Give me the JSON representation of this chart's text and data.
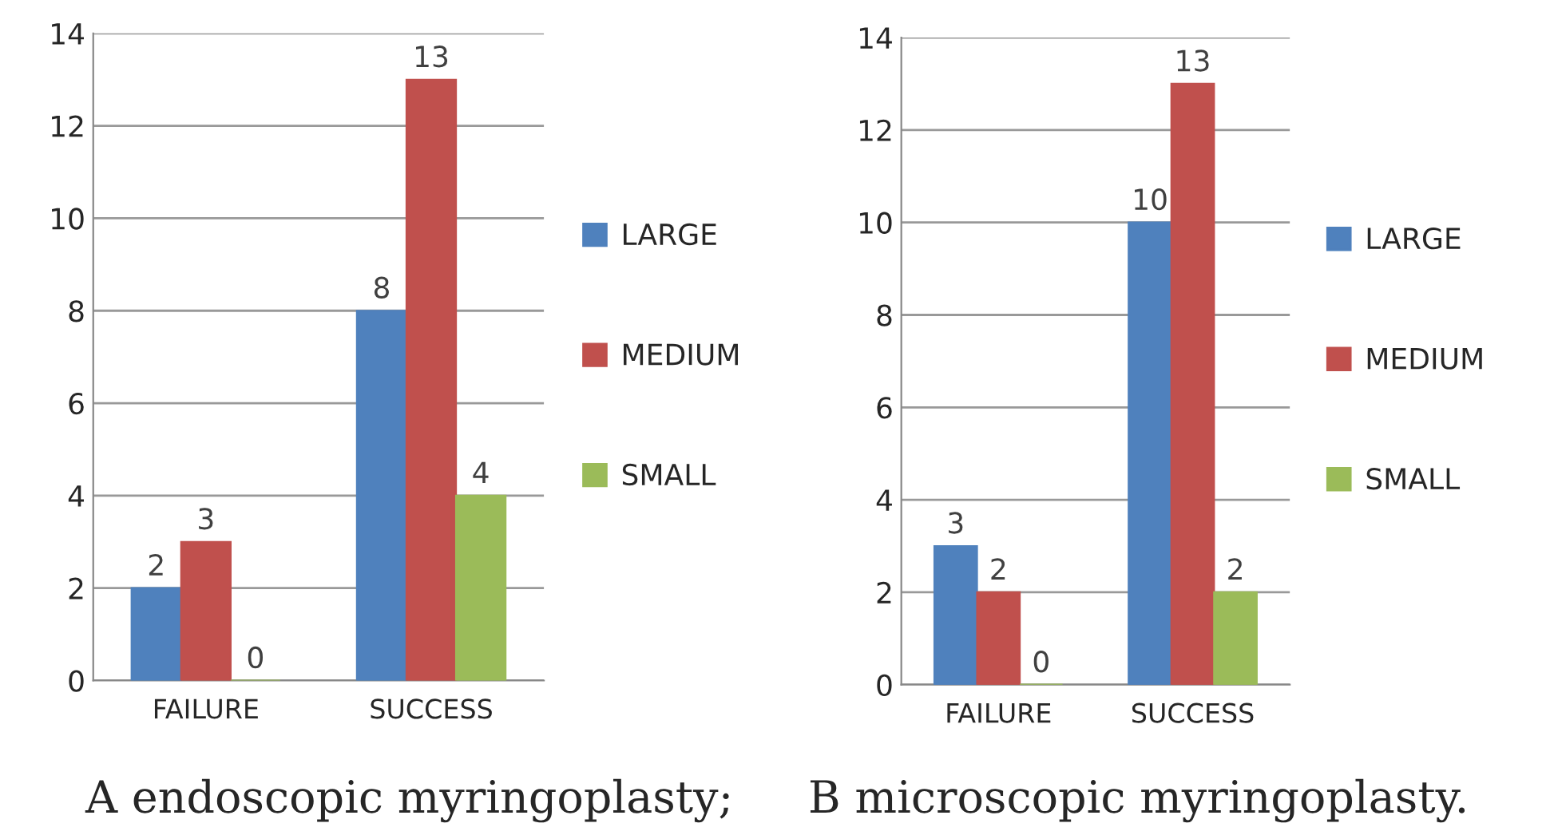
{
  "chart_data": [
    {
      "type": "bar",
      "categories": [
        "FAILURE",
        "SUCCESS"
      ],
      "series": [
        {
          "name": "LARGE",
          "color": "#4f81bd",
          "values": [
            2,
            8
          ]
        },
        {
          "name": "MEDIUM",
          "color": "#c0504d",
          "values": [
            3,
            13
          ]
        },
        {
          "name": "SMALL",
          "color": "#9bbb59",
          "values": [
            0,
            4
          ]
        }
      ],
      "ylim": [
        0,
        14
      ],
      "yticks": [
        0,
        2,
        4,
        6,
        8,
        10,
        12,
        14
      ],
      "grid": "y",
      "legend": "right",
      "data_labels": true,
      "annotations": [
        "A endoscopic myringoplasty;"
      ]
    },
    {
      "type": "bar",
      "categories": [
        "FAILURE",
        "SUCCESS"
      ],
      "series": [
        {
          "name": "LARGE",
          "color": "#4f81bd",
          "values": [
            3,
            10
          ]
        },
        {
          "name": "MEDIUM",
          "color": "#c0504d",
          "values": [
            2,
            13
          ]
        },
        {
          "name": "SMALL",
          "color": "#9bbb59",
          "values": [
            0,
            2
          ]
        }
      ],
      "ylim": [
        0,
        14
      ],
      "yticks": [
        0,
        2,
        4,
        6,
        8,
        10,
        12,
        14
      ],
      "grid": "y",
      "legend": "right",
      "data_labels": true,
      "annotations": [
        "B microscopic myringoplasty."
      ]
    }
  ]
}
